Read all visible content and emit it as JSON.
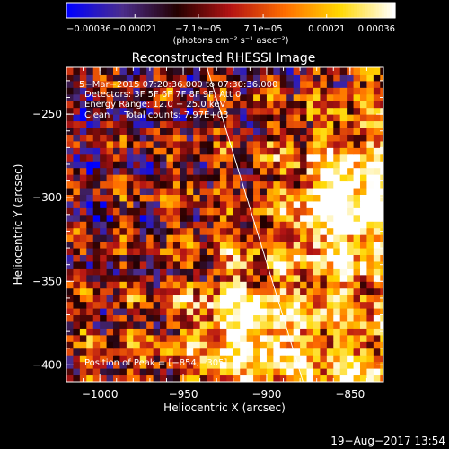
{
  "chart_data": {
    "type": "heatmap",
    "title": "Reconstructed RHESSI Image",
    "xlabel": "Heliocentric X (arcsec)",
    "ylabel": "Heliocentric Y (arcsec)",
    "xlim": [
      -1020,
      -830
    ],
    "ylim": [
      -410,
      -222
    ],
    "x_ticks": [
      -1000,
      -950,
      -900,
      -850
    ],
    "x_tick_labels": [
      "−1000",
      "−950",
      "−900",
      "−850"
    ],
    "y_ticks": [
      -250,
      -300,
      -350,
      -400
    ],
    "y_tick_labels": [
      "−250",
      "−300",
      "−350",
      "−400"
    ],
    "colorbar": {
      "min": -0.00036,
      "max": 0.00036,
      "ticks": [
        -0.00036,
        -0.00021,
        -7.1e-05,
        7.1e-05,
        0.00021,
        0.00036
      ],
      "tick_labels": [
        "−0.00036",
        "−0.00021",
        "−7.1e−05",
        "7.1e−05",
        "0.00021",
        "0.00036"
      ],
      "unit_label": "(photons cm⁻² s⁻¹ asec⁻²)",
      "colormap": [
        "#0000ff",
        "#4b2d8c",
        "#230000",
        "#b41414",
        "#ff6e00",
        "#ffd700",
        "#ffffff"
      ]
    },
    "annotations": [
      "5−Mar−2015 07:20:36.000 to 07:30:36.000",
      "Detectors: 3F 5F 6F 7F 8F 9F, Att 0",
      "Energy Range: 12.0 − 25.0 keV",
      "Clean     Total counts: 7.97E+03"
    ],
    "peak_label": "Position of Peak = [−854,−305]",
    "peak": [
      -854,
      -305
    ],
    "limb_line": [
      [
        -937,
        -218
      ],
      [
        -877,
        -414
      ]
    ],
    "grid": false,
    "legend": "none"
  },
  "footer": {
    "timestamp": "19−Aug−2017 13:54"
  }
}
